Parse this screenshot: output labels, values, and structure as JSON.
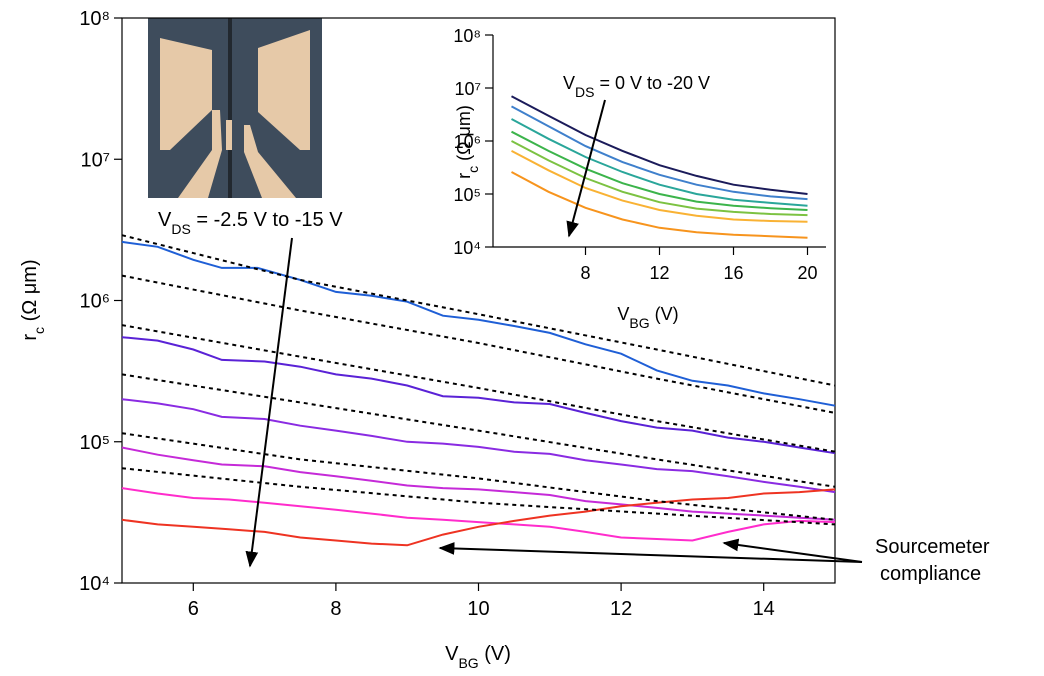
{
  "chart_data": [
    {
      "type": "line",
      "xlabel": {
        "main": "V",
        "sub": "BG",
        "rest": " (V)"
      },
      "ylabel": {
        "main": "r",
        "sub": "c",
        "rest": " (Ω μm)"
      },
      "xlim": [
        5,
        15
      ],
      "xticks": [
        6,
        8,
        10,
        12,
        14
      ],
      "ylim": [
        10000,
        100000000
      ],
      "log_y": true,
      "yticks": [
        {
          "value": 10000,
          "label": "10⁴"
        },
        {
          "value": 100000,
          "label": "10⁵"
        },
        {
          "value": 1000000,
          "label": "10⁶"
        },
        {
          "value": 10000000,
          "label": "10⁷"
        },
        {
          "value": 100000000,
          "label": "10⁸"
        }
      ],
      "annotations": [
        {
          "pre": "V",
          "sub": "DS",
          "post": " = -2.5 V to -15 V"
        },
        {
          "line1": "Sourcemeter",
          "line2": "compliance"
        }
      ],
      "series": [
        {
          "color": "#1f5fd6",
          "style": "solid",
          "x": [
            5,
            5.5,
            6,
            6.4,
            6.9,
            7.5,
            8,
            8.5,
            9,
            9.5,
            10,
            10.5,
            11,
            11.5,
            12,
            12.5,
            13,
            13.5,
            14,
            14.5,
            15
          ],
          "values": [
            2600000,
            2400000,
            1940000,
            1700000,
            1700000,
            1400000,
            1150000,
            1080000,
            980000,
            780000,
            730000,
            660000,
            590000,
            490000,
            420000,
            320000,
            270000,
            250000,
            220000,
            200000,
            180000
          ]
        },
        {
          "color": "#5a22d6",
          "style": "solid",
          "x": [
            5,
            5.5,
            6,
            6.4,
            7,
            7.5,
            8,
            8.5,
            9,
            9.5,
            10,
            10.5,
            11,
            11.5,
            12,
            12.5,
            13,
            13.5,
            14,
            14.5,
            15
          ],
          "values": [
            550000,
            520000,
            450000,
            380000,
            370000,
            340000,
            300000,
            280000,
            250000,
            210000,
            205000,
            190000,
            185000,
            160000,
            140000,
            126000,
            120000,
            107000,
            100000,
            91000,
            83000
          ]
        },
        {
          "color": "#8a2be2",
          "style": "solid",
          "x": [
            5,
            5.5,
            6,
            6.4,
            7,
            7.5,
            8,
            8.5,
            9,
            9.5,
            10,
            10.5,
            11,
            11.5,
            12,
            12.5,
            13,
            13.5,
            14,
            14.5,
            15
          ],
          "values": [
            200000,
            187000,
            170000,
            150000,
            145000,
            130000,
            120000,
            110000,
            100000,
            97000,
            92000,
            85000,
            82000,
            74000,
            69000,
            64000,
            62000,
            57000,
            52000,
            48000,
            44000
          ]
        },
        {
          "color": "#c52ad8",
          "style": "solid",
          "x": [
            5,
            5.5,
            6,
            6.4,
            7,
            7.5,
            8,
            8.5,
            9,
            9.5,
            10,
            10.5,
            11,
            11.5,
            12,
            12.5,
            13,
            13.5,
            14,
            14.5,
            15
          ],
          "values": [
            91000,
            81000,
            74000,
            69000,
            67000,
            61000,
            57000,
            53000,
            49000,
            47000,
            46000,
            44000,
            42000,
            38000,
            36000,
            34000,
            32000,
            31000,
            30000,
            29000,
            28000
          ]
        },
        {
          "color": "#ff2ccc",
          "style": "solid",
          "x": [
            5,
            5.5,
            6,
            6.5,
            7,
            7.5,
            8,
            8.5,
            9,
            9.5,
            10,
            10.5,
            11,
            11.5,
            12,
            12.5,
            13,
            13.5,
            14,
            14.5,
            15
          ],
          "values": [
            47000,
            43000,
            40000,
            39000,
            37000,
            35000,
            33000,
            31000,
            29000,
            28000,
            27000,
            26000,
            25000,
            23000,
            21000,
            20500,
            20000,
            23000,
            26000,
            27500,
            27000
          ]
        },
        {
          "color": "#ee3322",
          "style": "solid",
          "x": [
            5,
            5.5,
            6,
            6.5,
            7,
            7.5,
            8,
            8.5,
            9,
            9.5,
            10,
            10.5,
            11,
            11.5,
            12,
            12.5,
            13,
            13.5,
            14,
            14.5,
            15
          ],
          "values": [
            28000,
            26000,
            25000,
            24000,
            23000,
            21000,
            20000,
            19000,
            18500,
            22000,
            25000,
            27500,
            30000,
            32000,
            35000,
            37000,
            39000,
            40000,
            43000,
            44000,
            46000
          ]
        },
        {
          "color": "#000000",
          "style": "dashed",
          "x": [
            5,
            7.5,
            10,
            12.5,
            15
          ],
          "values": [
            2900000,
            1400000,
            800000,
            450000,
            250000
          ]
        },
        {
          "color": "#000000",
          "style": "dashed",
          "x": [
            5,
            7.5,
            10,
            12.5,
            15
          ],
          "values": [
            1500000,
            850000,
            500000,
            280000,
            160000
          ]
        },
        {
          "color": "#000000",
          "style": "dashed",
          "x": [
            5,
            7.5,
            10,
            12.5,
            15
          ],
          "values": [
            670000,
            400000,
            240000,
            140000,
            85000
          ]
        },
        {
          "color": "#000000",
          "style": "dashed",
          "x": [
            5,
            7.5,
            10,
            12.5,
            15
          ],
          "values": [
            300000,
            190000,
            120000,
            75000,
            48000
          ]
        },
        {
          "color": "#000000",
          "style": "dashed",
          "x": [
            5,
            7.5,
            10,
            12.5,
            15
          ],
          "values": [
            115000,
            75000,
            55000,
            38000,
            28000
          ]
        },
        {
          "color": "#000000",
          "style": "dashed",
          "x": [
            5,
            7.5,
            10,
            12.5,
            15
          ],
          "values": [
            65000,
            48000,
            37000,
            31000,
            26000
          ]
        }
      ]
    },
    {
      "type": "line",
      "xlabel": {
        "main": "V",
        "sub": "BG",
        "rest": " (V)"
      },
      "ylabel": {
        "main": "r",
        "sub": "c",
        "rest": " (Ω μm)"
      },
      "xlim": [
        3,
        21
      ],
      "xticks": [
        8,
        12,
        16,
        20
      ],
      "ylim": [
        10000,
        100000000
      ],
      "log_y": true,
      "yticks": [
        {
          "value": 10000,
          "label": "10⁴"
        },
        {
          "value": 100000,
          "label": "10⁵"
        },
        {
          "value": 1000000,
          "label": "10⁶"
        },
        {
          "value": 10000000,
          "label": "10⁷"
        },
        {
          "value": 100000000,
          "label": "10⁸"
        }
      ],
      "annotations": [
        {
          "pre": "V",
          "sub": "DS",
          "post": " = 0 V to -20 V"
        }
      ],
      "series": [
        {
          "color": "#1b1b5a",
          "style": "solid",
          "x": [
            4,
            6,
            8,
            10,
            12,
            14,
            16,
            18,
            20
          ],
          "values": [
            7000000,
            3000000,
            1300000,
            650000,
            350000,
            220000,
            150000,
            120000,
            100000
          ]
        },
        {
          "color": "#3f80cc",
          "style": "solid",
          "x": [
            4,
            6,
            8,
            10,
            12,
            14,
            16,
            18,
            20
          ],
          "values": [
            4500000,
            1900000,
            800000,
            400000,
            230000,
            150000,
            110000,
            90000,
            80000
          ]
        },
        {
          "color": "#2aa69a",
          "style": "solid",
          "x": [
            4,
            6,
            8,
            10,
            12,
            14,
            16,
            18,
            20
          ],
          "values": [
            2600000,
            1100000,
            500000,
            260000,
            150000,
            100000,
            78000,
            68000,
            60000
          ]
        },
        {
          "color": "#3cb44b",
          "style": "solid",
          "x": [
            4,
            6,
            8,
            10,
            12,
            14,
            16,
            18,
            20
          ],
          "values": [
            1500000,
            650000,
            300000,
            160000,
            100000,
            72000,
            60000,
            54000,
            50000
          ]
        },
        {
          "color": "#7cc242",
          "style": "solid",
          "x": [
            4,
            6,
            8,
            10,
            12,
            14,
            16,
            18,
            20
          ],
          "values": [
            1000000,
            430000,
            200000,
            110000,
            70000,
            53000,
            46000,
            42000,
            40000
          ]
        },
        {
          "color": "#f9b234",
          "style": "solid",
          "x": [
            4,
            6,
            8,
            10,
            12,
            14,
            16,
            18,
            20
          ],
          "values": [
            650000,
            280000,
            130000,
            75000,
            50000,
            39000,
            33000,
            31000,
            30000
          ]
        },
        {
          "color": "#f7941d",
          "style": "solid",
          "x": [
            4,
            6,
            8,
            10,
            12,
            14,
            16,
            18,
            20
          ],
          "values": [
            260000,
            110000,
            55000,
            33000,
            23000,
            19000,
            17000,
            16000,
            15000
          ]
        }
      ]
    }
  ]
}
